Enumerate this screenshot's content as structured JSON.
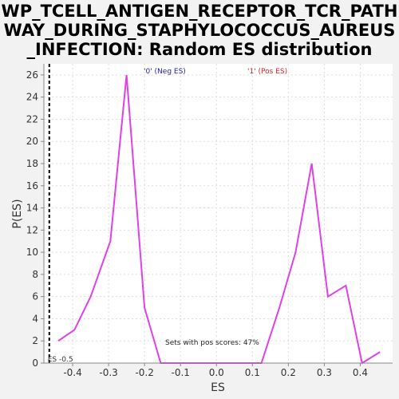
{
  "title": "WP_TCELL_ANTIGEN_RECEPTOR_TCR_PATHWAY_DURING_STAPHYLOCOCCUS_AUREUS_INFECTION: Random ES distribution",
  "chart_data": {
    "type": "line",
    "title": "WP_TCELL_ANTIGEN_RECEPTOR_TCR_PATHWAY_DURING_STAPHYLOCOCCUS_AUREUS_INFECTION: Random ES distribution",
    "xlabel": "ES",
    "ylabel": "P(ES)",
    "xlim": [
      -0.48,
      0.49
    ],
    "ylim": [
      0,
      27
    ],
    "x_ticks": [
      -0.4,
      -0.3,
      -0.2,
      -0.1,
      0.0,
      0.1,
      0.2,
      0.3,
      0.4
    ],
    "x_tick_labels": [
      "-0.4",
      "-0.3",
      "-0.2",
      "-0.1",
      "0.0",
      "0.1",
      "0.2",
      "0.3",
      "0.4"
    ],
    "y_ticks": [
      0,
      2,
      4,
      6,
      8,
      10,
      12,
      14,
      16,
      18,
      20,
      22,
      24,
      26
    ],
    "y_tick_labels": [
      "0",
      "2",
      "4",
      "6",
      "8",
      "10",
      "12",
      "14",
      "16",
      "18",
      "20",
      "22",
      "24",
      "26"
    ],
    "grid": true,
    "series": [
      {
        "color": "#e040e8",
        "x": [
          -0.44,
          -0.395,
          -0.35,
          -0.295,
          -0.25,
          -0.2,
          -0.155,
          -0.11,
          -0.065,
          -0.02,
          0.025,
          0.07,
          0.125,
          0.175,
          0.22,
          0.265,
          0.31,
          0.36,
          0.405,
          0.455
        ],
        "y": [
          2,
          3,
          6,
          11,
          26,
          5,
          0,
          0,
          0,
          0,
          0,
          0,
          0,
          5,
          10,
          18,
          6,
          7,
          0,
          1
        ]
      }
    ],
    "reference_line": {
      "x": -0.465,
      "label": "ES -0.5",
      "style": "dashed"
    },
    "legend": [
      {
        "label": "'0' (Neg ES)",
        "color": "#2222bb"
      },
      {
        "label": "'1' (Pos ES)",
        "color": "#dd2222"
      }
    ],
    "annotation": "Sets with pos scores: 47%"
  }
}
